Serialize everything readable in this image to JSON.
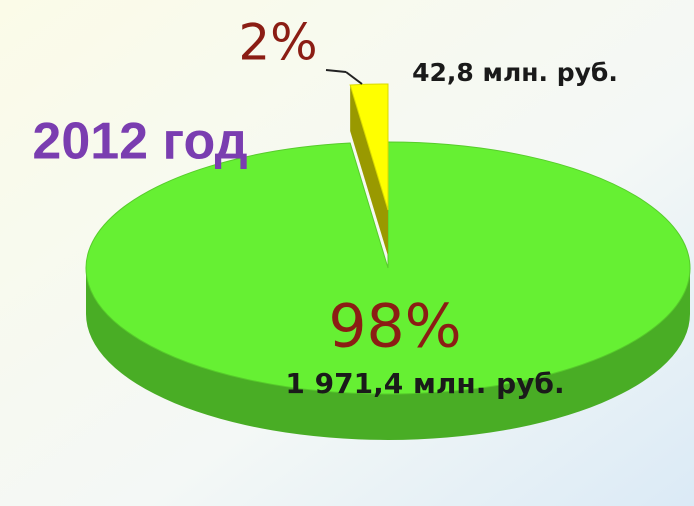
{
  "chart_data": {
    "type": "pie",
    "title": "2012 год",
    "values": [
      98,
      2
    ],
    "value_labels": [
      "98%",
      "2%"
    ],
    "annotations": [
      "1 971,4 млн. руб.",
      "42,8 млн. руб."
    ],
    "colors": [
      "#66f033",
      "#ffff00"
    ],
    "explode": [
      false,
      true
    ]
  }
}
